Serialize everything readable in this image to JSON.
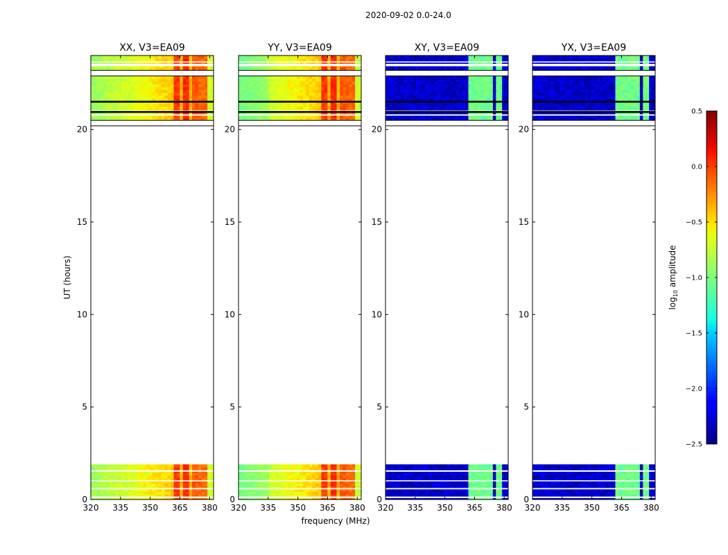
{
  "figure": {
    "suptitle": "2020-09-02 0.0-24.0",
    "xlabel": "frequency (MHz)",
    "ylabel": "UT (hours)"
  },
  "colorbar": {
    "label_main": "log",
    "label_sub": "10",
    "label_rest": " amplitude",
    "range": [
      -2.5,
      0.5
    ],
    "ticks": [
      0.5,
      0.0,
      -0.5,
      -1.0,
      -1.5,
      -2.0,
      -2.5
    ],
    "tick_labels": [
      "0.5",
      "0.0",
      "−0.5",
      "−1.0",
      "−1.5",
      "−2.0",
      "−2.5"
    ]
  },
  "chart_data": [
    {
      "type": "heatmap",
      "title": "XX, V3=EA09",
      "polarization": "XX",
      "xlim": [
        320,
        382
      ],
      "ylim": [
        0,
        24
      ],
      "xticks": [
        320,
        335,
        350,
        365,
        380
      ],
      "yticks": [
        0,
        5,
        10,
        15,
        20
      ],
      "data_blocks_ut": [
        [
          0,
          1.9
        ],
        [
          20.5,
          22.9
        ],
        [
          23.2,
          24
        ]
      ],
      "cross_hand": false
    },
    {
      "type": "heatmap",
      "title": "YY, V3=EA09",
      "polarization": "YY",
      "xlim": [
        320,
        382
      ],
      "ylim": [
        0,
        24
      ],
      "xticks": [
        320,
        335,
        350,
        365,
        380
      ],
      "yticks": [
        0,
        5,
        10,
        15,
        20
      ],
      "data_blocks_ut": [
        [
          0,
          1.9
        ],
        [
          20.5,
          22.9
        ],
        [
          23.2,
          24
        ]
      ],
      "cross_hand": false
    },
    {
      "type": "heatmap",
      "title": "XY, V3=EA09",
      "polarization": "XY",
      "xlim": [
        320,
        382
      ],
      "ylim": [
        0,
        24
      ],
      "xticks": [
        320,
        335,
        350,
        365,
        380
      ],
      "yticks": [
        0,
        5,
        10,
        15,
        20
      ],
      "data_blocks_ut": [
        [
          0,
          1.9
        ],
        [
          20.5,
          22.9
        ],
        [
          23.2,
          24
        ]
      ],
      "cross_hand": true
    },
    {
      "type": "heatmap",
      "title": "YX, V3=EA09",
      "polarization": "YX",
      "xlim": [
        320,
        382
      ],
      "ylim": [
        0,
        24
      ],
      "xticks": [
        320,
        335,
        350,
        365,
        380
      ],
      "yticks": [
        0,
        5,
        10,
        15,
        20
      ],
      "data_blocks_ut": [
        [
          0,
          1.9
        ],
        [
          20.5,
          22.9
        ],
        [
          23.2,
          24
        ]
      ],
      "cross_hand": true
    }
  ]
}
